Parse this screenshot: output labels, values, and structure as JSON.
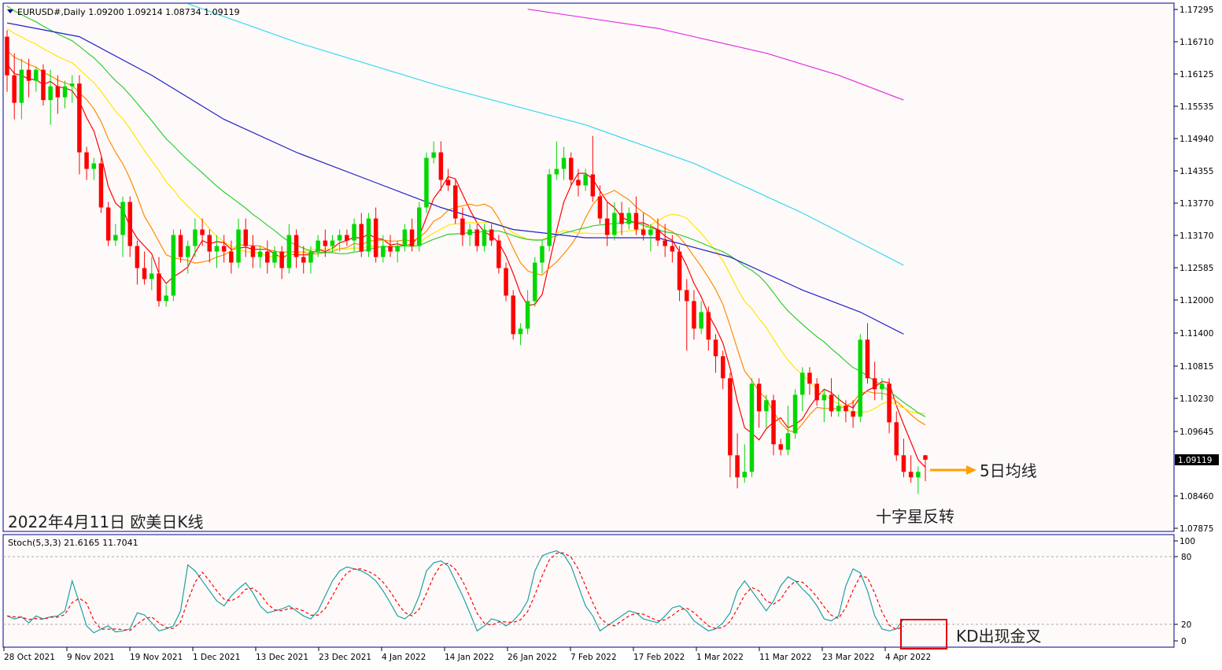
{
  "symbol_header": "EURUSD#,Daily  1.09200 1.09214 1.08734 1.09119",
  "stoch_header": "Stoch(5,3,3) 21.6165 11.7041",
  "current_price": "1.09119",
  "price_ticks": [
    "1.17295",
    "1.16710",
    "1.16125",
    "1.15535",
    "1.14940",
    "1.14355",
    "1.13770",
    "1.13170",
    "1.12585",
    "1.12000",
    "1.11400",
    "1.10815",
    "1.10230",
    "1.09645",
    "1.08460",
    "1.07875"
  ],
  "stoch_ticks": [
    "100",
    "80",
    "20",
    "0"
  ],
  "date_ticks": [
    "28 Oct 2021",
    "9 Nov 2021",
    "19 Nov 2021",
    "1 Dec 2021",
    "13 Dec 2021",
    "23 Dec 2021",
    "4 Jan 2022",
    "14 Jan 2022",
    "26 Jan 2022",
    "7 Feb 2022",
    "17 Feb 2022",
    "1 Mar 2022",
    "11 Mar 2022",
    "23 Mar 2022",
    "4 Apr 2022"
  ],
  "annotations": {
    "chart_caption": "2022年4月11日 欧美日K线",
    "ma5_label": "5日均线",
    "doji_label": "十字星反转",
    "kd_label": "KD出现金叉"
  },
  "colors": {
    "bull": "#00d800",
    "bear": "#ff0000",
    "ma5": "#ff0000",
    "ma10": "#ff8c00",
    "ma20": "#ffe600",
    "ma30": "#32cd32",
    "ma60": "#2020c8",
    "ma120": "#3ad8f0",
    "ma200": "#e030e0",
    "stoch_k": "#20a0a0",
    "stoch_d": "#ff0000",
    "arrow": "#ffa000"
  },
  "chart_data": {
    "type": "candlestick",
    "symbol": "EURUSD#",
    "timeframe": "Daily",
    "ohlc_header": {
      "open": 1.092,
      "high": 1.09214,
      "low": 1.08734,
      "close": 1.09119
    },
    "y_axis_range": [
      1.07875,
      1.17295
    ],
    "y_scale_note": "axis ticks: 1.17295 ... 1.07875",
    "candles": [
      [
        1.168,
        1.1692,
        1.158,
        1.161
      ],
      [
        1.161,
        1.165,
        1.153,
        1.156
      ],
      [
        1.156,
        1.164,
        1.153,
        1.162
      ],
      [
        1.162,
        1.164,
        1.157,
        1.16
      ],
      [
        1.16,
        1.1625,
        1.158,
        1.162
      ],
      [
        1.162,
        1.163,
        1.1555,
        1.1565
      ],
      [
        1.1565,
        1.162,
        1.152,
        1.159
      ],
      [
        1.159,
        1.161,
        1.154,
        1.157
      ],
      [
        1.157,
        1.16,
        1.155,
        1.159
      ],
      [
        1.159,
        1.161,
        1.156,
        1.1595
      ],
      [
        1.1595,
        1.161,
        1.143,
        1.147
      ],
      [
        1.147,
        1.148,
        1.142,
        1.144
      ],
      [
        1.144,
        1.146,
        1.142,
        1.145
      ],
      [
        1.145,
        1.146,
        1.136,
        1.137
      ],
      [
        1.137,
        1.138,
        1.13,
        1.131
      ],
      [
        1.131,
        1.134,
        1.13,
        1.132
      ],
      [
        1.132,
        1.139,
        1.128,
        1.138
      ],
      [
        1.138,
        1.139,
        1.128,
        1.13
      ],
      [
        1.13,
        1.131,
        1.123,
        1.126
      ],
      [
        1.126,
        1.129,
        1.123,
        1.124
      ],
      [
        1.124,
        1.128,
        1.122,
        1.125
      ],
      [
        1.125,
        1.128,
        1.119,
        1.12
      ],
      [
        1.12,
        1.123,
        1.119,
        1.121
      ],
      [
        1.121,
        1.133,
        1.12,
        1.132
      ],
      [
        1.132,
        1.133,
        1.127,
        1.128
      ],
      [
        1.128,
        1.131,
        1.125,
        1.13
      ],
      [
        1.13,
        1.135,
        1.128,
        1.133
      ],
      [
        1.133,
        1.135,
        1.13,
        1.132
      ],
      [
        1.132,
        1.133,
        1.127,
        1.129
      ],
      [
        1.129,
        1.132,
        1.126,
        1.13
      ],
      [
        1.13,
        1.132,
        1.127,
        1.129
      ],
      [
        1.129,
        1.131,
        1.125,
        1.127
      ],
      [
        1.127,
        1.135,
        1.126,
        1.133
      ],
      [
        1.133,
        1.135,
        1.128,
        1.13
      ],
      [
        1.13,
        1.132,
        1.126,
        1.128
      ],
      [
        1.128,
        1.13,
        1.126,
        1.129
      ],
      [
        1.129,
        1.131,
        1.125,
        1.127
      ],
      [
        1.127,
        1.13,
        1.126,
        1.129
      ],
      [
        1.129,
        1.13,
        1.124,
        1.126
      ],
      [
        1.126,
        1.134,
        1.125,
        1.132
      ],
      [
        1.132,
        1.133,
        1.126,
        1.128
      ],
      [
        1.128,
        1.13,
        1.125,
        1.127
      ],
      [
        1.127,
        1.13,
        1.125,
        1.129
      ],
      [
        1.129,
        1.132,
        1.128,
        1.131
      ],
      [
        1.131,
        1.133,
        1.128,
        1.13
      ],
      [
        1.13,
        1.132,
        1.129,
        1.131
      ],
      [
        1.131,
        1.133,
        1.129,
        1.132
      ],
      [
        1.132,
        1.133,
        1.13,
        1.131
      ],
      [
        1.131,
        1.135,
        1.129,
        1.134
      ],
      [
        1.134,
        1.136,
        1.128,
        1.129
      ],
      [
        1.129,
        1.136,
        1.128,
        1.135
      ],
      [
        1.135,
        1.137,
        1.127,
        1.128
      ],
      [
        1.128,
        1.132,
        1.127,
        1.13
      ],
      [
        1.13,
        1.132,
        1.128,
        1.129
      ],
      [
        1.129,
        1.131,
        1.127,
        1.13
      ],
      [
        1.13,
        1.134,
        1.129,
        1.133
      ],
      [
        1.133,
        1.135,
        1.129,
        1.13
      ],
      [
        1.13,
        1.138,
        1.129,
        1.137
      ],
      [
        1.137,
        1.147,
        1.136,
        1.146
      ],
      [
        1.146,
        1.149,
        1.145,
        1.147
      ],
      [
        1.147,
        1.149,
        1.14,
        1.142
      ],
      [
        1.142,
        1.144,
        1.14,
        1.141
      ],
      [
        1.141,
        1.142,
        1.134,
        1.135
      ],
      [
        1.135,
        1.137,
        1.13,
        1.132
      ],
      [
        1.132,
        1.134,
        1.13,
        1.133
      ],
      [
        1.133,
        1.134,
        1.129,
        1.13
      ],
      [
        1.13,
        1.134,
        1.129,
        1.133
      ],
      [
        1.133,
        1.134,
        1.13,
        1.131
      ],
      [
        1.131,
        1.132,
        1.125,
        1.126
      ],
      [
        1.126,
        1.127,
        1.12,
        1.121
      ],
      [
        1.121,
        1.122,
        1.113,
        1.114
      ],
      [
        1.114,
        1.116,
        1.112,
        1.115
      ],
      [
        1.115,
        1.122,
        1.114,
        1.12
      ],
      [
        1.12,
        1.128,
        1.119,
        1.127
      ],
      [
        1.127,
        1.131,
        1.125,
        1.13
      ],
      [
        1.13,
        1.144,
        1.129,
        1.143
      ],
      [
        1.143,
        1.149,
        1.142,
        1.144
      ],
      [
        1.144,
        1.148,
        1.142,
        1.146
      ],
      [
        1.146,
        1.147,
        1.141,
        1.142
      ],
      [
        1.142,
        1.144,
        1.139,
        1.141
      ],
      [
        1.141,
        1.144,
        1.14,
        1.143
      ],
      [
        1.143,
        1.15,
        1.138,
        1.139
      ],
      [
        1.139,
        1.141,
        1.134,
        1.135
      ],
      [
        1.135,
        1.138,
        1.13,
        1.132
      ],
      [
        1.132,
        1.138,
        1.131,
        1.136
      ],
      [
        1.136,
        1.138,
        1.132,
        1.134
      ],
      [
        1.134,
        1.137,
        1.133,
        1.136
      ],
      [
        1.136,
        1.139,
        1.132,
        1.133
      ],
      [
        1.133,
        1.136,
        1.131,
        1.132
      ],
      [
        1.132,
        1.134,
        1.129,
        1.133
      ],
      [
        1.133,
        1.135,
        1.13,
        1.131
      ],
      [
        1.131,
        1.134,
        1.128,
        1.13
      ],
      [
        1.13,
        1.132,
        1.127,
        1.129
      ],
      [
        1.129,
        1.13,
        1.12,
        1.122
      ],
      [
        1.122,
        1.124,
        1.111,
        1.12
      ],
      [
        1.12,
        1.122,
        1.113,
        1.115
      ],
      [
        1.115,
        1.12,
        1.114,
        1.118
      ],
      [
        1.118,
        1.119,
        1.111,
        1.113
      ],
      [
        1.113,
        1.114,
        1.107,
        1.11
      ],
      [
        1.11,
        1.111,
        1.104,
        1.106
      ],
      [
        1.106,
        1.107,
        1.088,
        1.092
      ],
      [
        1.092,
        1.096,
        1.086,
        1.088
      ],
      [
        1.088,
        1.094,
        1.087,
        1.089
      ],
      [
        1.089,
        1.106,
        1.088,
        1.105
      ],
      [
        1.105,
        1.106,
        1.097,
        1.1
      ],
      [
        1.1,
        1.103,
        1.097,
        1.102
      ],
      [
        1.102,
        1.103,
        1.092,
        1.094
      ],
      [
        1.094,
        1.095,
        1.092,
        1.093
      ],
      [
        1.093,
        1.101,
        1.092,
        1.096
      ],
      [
        1.096,
        1.104,
        1.095,
        1.103
      ],
      [
        1.103,
        1.108,
        1.1,
        1.107
      ],
      [
        1.107,
        1.108,
        1.103,
        1.105
      ],
      [
        1.105,
        1.106,
        1.101,
        1.102
      ],
      [
        1.102,
        1.104,
        1.098,
        1.103
      ],
      [
        1.103,
        1.106,
        1.099,
        1.1
      ],
      [
        1.1,
        1.103,
        1.099,
        1.101
      ],
      [
        1.101,
        1.102,
        1.098,
        1.1
      ],
      [
        1.1,
        1.102,
        1.097,
        1.099
      ],
      [
        1.099,
        1.114,
        1.098,
        1.113
      ],
      [
        1.113,
        1.116,
        1.105,
        1.106
      ],
      [
        1.106,
        1.109,
        1.102,
        1.104
      ],
      [
        1.104,
        1.106,
        1.102,
        1.105
      ],
      [
        1.105,
        1.106,
        1.096,
        1.098
      ],
      [
        1.098,
        1.1,
        1.091,
        1.092
      ],
      [
        1.092,
        1.095,
        1.088,
        1.089
      ],
      [
        1.089,
        1.092,
        1.087,
        1.088
      ],
      [
        1.088,
        1.09,
        1.085,
        1.089
      ],
      [
        1.092,
        1.0921,
        1.0873,
        1.0912
      ]
    ],
    "stoch_k": [
      25,
      22,
      24,
      18,
      25,
      22,
      24,
      25,
      30,
      60,
      38,
      15,
      8,
      12,
      15,
      9,
      10,
      12,
      28,
      26,
      18,
      10,
      12,
      15,
      30,
      76,
      70,
      60,
      50,
      40,
      35,
      45,
      52,
      58,
      48,
      35,
      28,
      30,
      32,
      35,
      30,
      25,
      22,
      30,
      45,
      60,
      70,
      74,
      72,
      70,
      66,
      60,
      50,
      38,
      25,
      22,
      28,
      45,
      70,
      78,
      80,
      75,
      60,
      45,
      28,
      10,
      15,
      22,
      20,
      15,
      20,
      28,
      40,
      70,
      85,
      88,
      90,
      86,
      75,
      55,
      35,
      25,
      10,
      15,
      20,
      25,
      30,
      28,
      22,
      20,
      18,
      25,
      33,
      35,
      30,
      20,
      15,
      10,
      12,
      18,
      28,
      50,
      60,
      50,
      40,
      30,
      40,
      55,
      64,
      60,
      52,
      45,
      35,
      22,
      20,
      25,
      55,
      72,
      68,
      50,
      25,
      12,
      10,
      12,
      22
    ]
  }
}
